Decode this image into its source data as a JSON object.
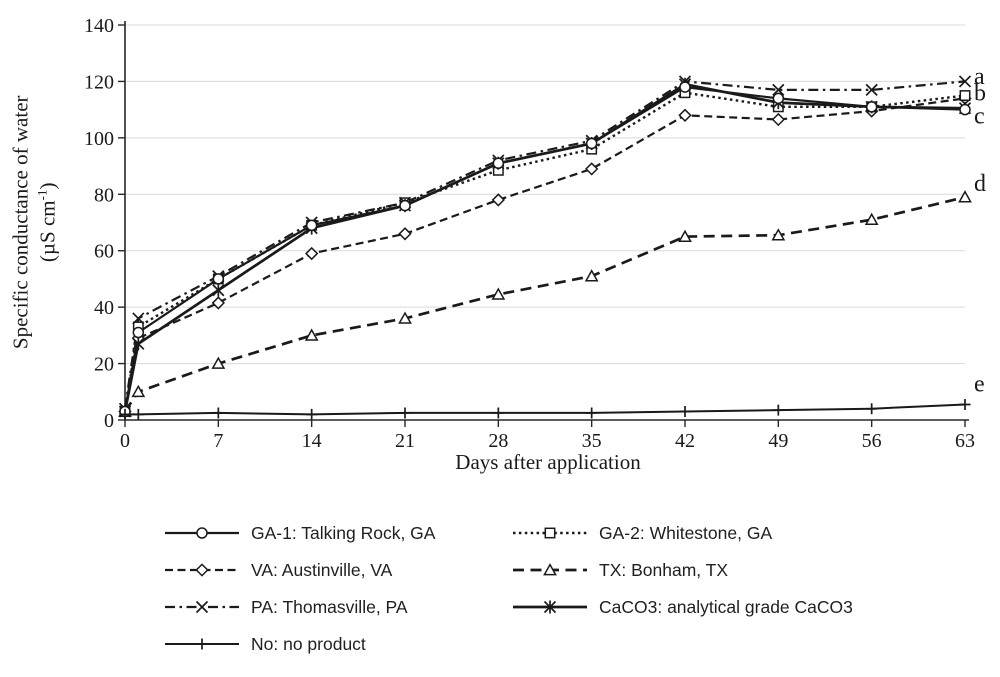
{
  "chart_data": {
    "type": "line",
    "title": "",
    "xlabel": "Days after application",
    "ylabel_line1": "Specific conductance of water",
    "ylabel_line2_pre": "(µS cm",
    "ylabel_sup": "-1",
    "ylabel_line2_post": ")",
    "xlim": [
      0,
      63
    ],
    "ylim": [
      0,
      140
    ],
    "x_ticks": [
      0,
      7,
      14,
      21,
      28,
      35,
      42,
      49,
      56,
      63
    ],
    "y_ticks": [
      0,
      20,
      40,
      60,
      80,
      100,
      120,
      140
    ],
    "grid": "horizontal",
    "legend_position": "bottom",
    "x": [
      0,
      1,
      7,
      14,
      21,
      28,
      35,
      42,
      49,
      56,
      63
    ],
    "series": [
      {
        "key": "GA-1",
        "name": "GA-1: Talking Rock, GA",
        "marker": "circle",
        "dash": "solid",
        "values": [
          3,
          31,
          50,
          69,
          76,
          91,
          98,
          118,
          114,
          111,
          110
        ]
      },
      {
        "key": "GA-2",
        "name": "GA-2: Whitestone, GA",
        "marker": "square",
        "dash": "dotted",
        "values": [
          3,
          33,
          50,
          69,
          77,
          88.5,
          96,
          116,
          111,
          111,
          115
        ]
      },
      {
        "key": "VA",
        "name": "VA: Austinville, VA",
        "marker": "diamond",
        "dash": "dashed",
        "values": [
          3,
          29,
          41.5,
          59,
          66,
          78,
          89,
          108,
          106.5,
          109.5,
          114
        ]
      },
      {
        "key": "TX",
        "name": "TX: Bonham, TX",
        "marker": "triangle",
        "dash": "longdash",
        "values": [
          3,
          10,
          20,
          30,
          36,
          44.5,
          51,
          65,
          65.5,
          71,
          79
        ]
      },
      {
        "key": "PA",
        "name": "PA: Thomasville, PA",
        "marker": "x",
        "dash": "dashdot",
        "values": [
          4,
          36,
          51,
          70,
          77,
          92,
          99,
          120,
          117,
          117,
          120
        ]
      },
      {
        "key": "CaCO3",
        "name": "CaCO3: analytical grade CaCO3",
        "marker": "star",
        "dash": "solid",
        "values": [
          3,
          27,
          46,
          68,
          76,
          91,
          98,
          119,
          112.5,
          111,
          110.5
        ]
      },
      {
        "key": "No",
        "name": "No: no product",
        "marker": "plus",
        "dash": "solid",
        "values": [
          2,
          2,
          2.5,
          2,
          2.5,
          2.5,
          2.5,
          3,
          3.5,
          4,
          5.5
        ]
      }
    ],
    "annotations": [
      {
        "label": "a",
        "y": 122
      },
      {
        "label": "b",
        "y": 116
      },
      {
        "label": "c",
        "y": 108
      },
      {
        "label": "d",
        "y": 84
      },
      {
        "label": "e",
        "y": 13
      }
    ],
    "colors": {
      "line": "#1a1a1a",
      "grid": "#d9d9d9",
      "axis": "#262626"
    }
  }
}
